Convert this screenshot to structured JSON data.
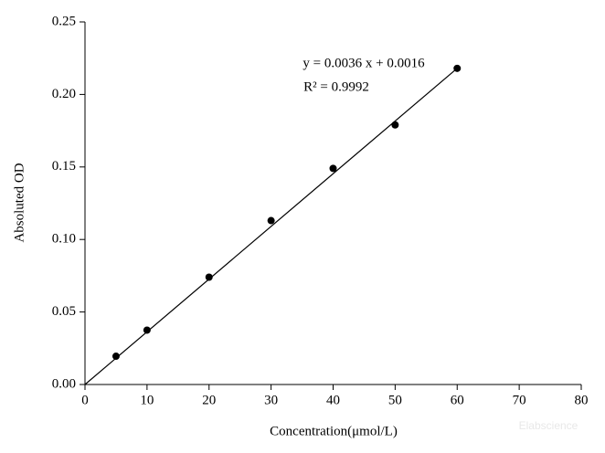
{
  "chart_data": {
    "type": "scatter",
    "x_label": "Concentration(μmol/L)",
    "y_label": "Absoluted OD",
    "x": [
      5,
      10,
      20,
      30,
      40,
      50,
      60
    ],
    "values": [
      0.0195,
      0.0375,
      0.074,
      0.113,
      0.149,
      0.179,
      0.218
    ],
    "color": "#000000",
    "fit_line": {
      "x": [
        0,
        60
      ],
      "values": [
        0,
        0.218
      ]
    },
    "annotations": [
      "y = 0.0036 x + 0.0016",
      "R² = 0.9992"
    ],
    "watermark": "Elabscience",
    "xlim": [
      0,
      80
    ],
    "xticks": [
      0,
      10,
      20,
      30,
      40,
      50,
      60,
      70,
      80
    ],
    "ylim": [
      0,
      0.25
    ],
    "yticks": [
      {
        "value": 0,
        "label": "0.00"
      },
      {
        "value": 0.05,
        "label": "0.05"
      },
      {
        "value": 0.1,
        "label": "0.10"
      },
      {
        "value": 0.15,
        "label": "0.15"
      },
      {
        "value": 0.2,
        "label": "0.20"
      },
      {
        "value": 0.25,
        "label": "0.25"
      }
    ],
    "grid": false
  }
}
